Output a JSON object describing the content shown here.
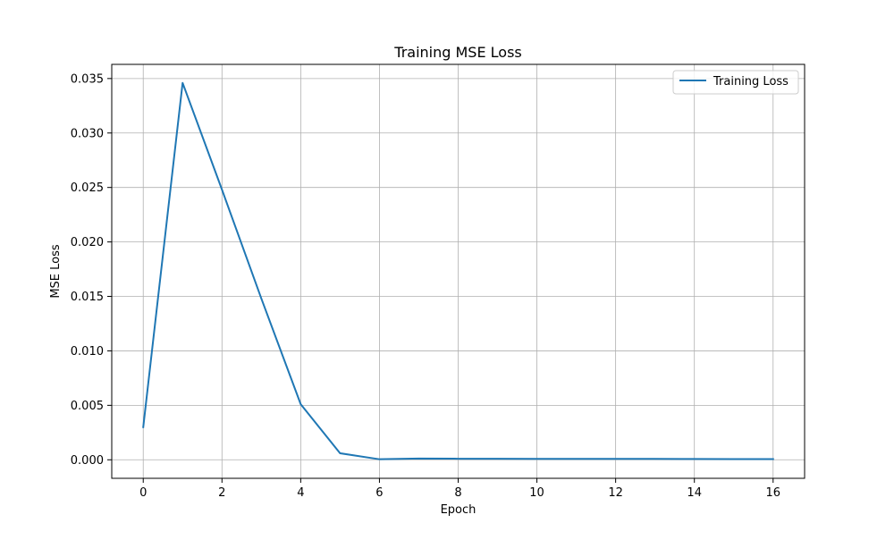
{
  "chart_data": {
    "type": "line",
    "title": "Training MSE Loss",
    "xlabel": "Epoch",
    "ylabel": "MSE Loss",
    "xlim": [
      -0.8,
      16.8
    ],
    "ylim": [
      -0.0017,
      0.0363
    ],
    "xticks": [
      0,
      2,
      4,
      6,
      8,
      10,
      12,
      14,
      16
    ],
    "xtick_labels": [
      "0",
      "2",
      "4",
      "6",
      "8",
      "10",
      "12",
      "14",
      "16"
    ],
    "yticks": [
      0.0,
      0.005,
      0.01,
      0.015,
      0.02,
      0.025,
      0.03,
      0.035
    ],
    "ytick_labels": [
      "0.000",
      "0.005",
      "0.010",
      "0.015",
      "0.020",
      "0.025",
      "0.030",
      "0.035"
    ],
    "grid": true,
    "legend_position": "upper right",
    "series": [
      {
        "name": "Training Loss",
        "color": "#1f77b4",
        "x": [
          0,
          1,
          2,
          3,
          4,
          5,
          6,
          7,
          8,
          9,
          10,
          11,
          12,
          13,
          14,
          15,
          16
        ],
        "y": [
          0.003,
          0.0346,
          0.0248,
          0.0148,
          0.0051,
          0.0006,
          5e-05,
          0.00012,
          0.0001,
          0.0001,
          9e-05,
          9e-05,
          9e-05,
          8e-05,
          7e-05,
          6e-05,
          6e-05
        ]
      }
    ]
  }
}
